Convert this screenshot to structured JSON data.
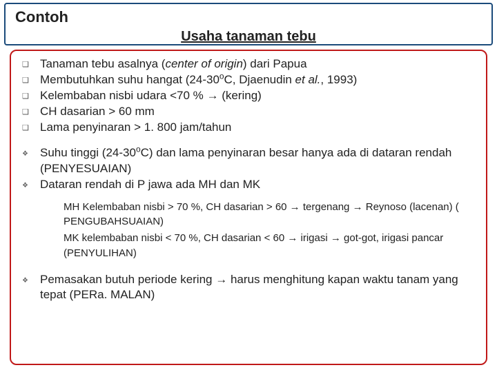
{
  "title": "Contoh",
  "subtitle": "Usaha tanaman tebu",
  "colors": {
    "outer_border": "#1a4a7a",
    "inner_border": "#c01818",
    "text": "#222222",
    "bullet": "#555555",
    "background": "#ffffff"
  },
  "fonts": {
    "title_size": 22,
    "subtitle_size": 20,
    "body_size": 17,
    "indent_size": 15
  },
  "block1": [
    "Tanaman tebu asalnya (<i>center of origin</i>) dari Papua",
    "Membutuhkan suhu hangat  (24-30<sup>o</sup>C, Djaenudin <i>et al.</i>, 1993)",
    "Kelembaban nisbi udara <70 % →  (kering)",
    "CH dasarian > 60 mm",
    "Lama penyinaran  > 1. 800 jam/tahun"
  ],
  "block2": [
    "Suhu tinggi (24-30<sup>o</sup>C) dan lama penyinaran besar hanya ada di dataran rendah (PENYESUAIAN)",
    "Dataran rendah di P jawa ada MH dan MK"
  ],
  "indent": [
    "MH Kelembaban nisbi > 70 %, CH dasarian > 60 → tergenang → Reynoso (lacenan) ( PENGUBAHSUAIAN)",
    "MK kelembaban nisbi < 70 %, CH dasarian < 60 → irigasi → got-got, irigasi pancar (PENYULIHAN)"
  ],
  "block3": [
    "Pemasakan butuh periode kering → harus menghitung kapan waktu tanam yang tepat (PERa. MALAN)"
  ]
}
